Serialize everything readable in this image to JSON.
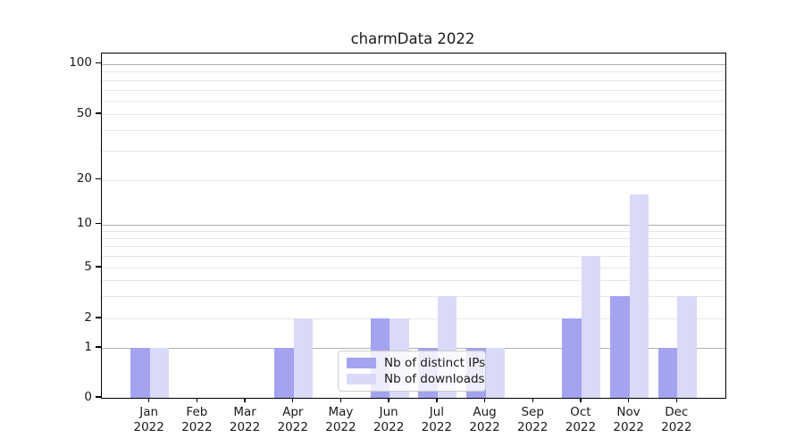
{
  "title": "charmData 2022",
  "chart_data": {
    "type": "bar",
    "title": "charmData 2022",
    "categories": [
      {
        "month": "Jan",
        "year": "2022"
      },
      {
        "month": "Feb",
        "year": "2022"
      },
      {
        "month": "Mar",
        "year": "2022"
      },
      {
        "month": "Apr",
        "year": "2022"
      },
      {
        "month": "May",
        "year": "2022"
      },
      {
        "month": "Jun",
        "year": "2022"
      },
      {
        "month": "Jul",
        "year": "2022"
      },
      {
        "month": "Aug",
        "year": "2022"
      },
      {
        "month": "Sep",
        "year": "2022"
      },
      {
        "month": "Oct",
        "year": "2022"
      },
      {
        "month": "Nov",
        "year": "2022"
      },
      {
        "month": "Dec",
        "year": "2022"
      }
    ],
    "series": [
      {
        "name": "Nb of distinct IPs",
        "color": "#a3a3f0",
        "values": [
          1,
          0,
          0,
          1,
          0,
          2,
          1,
          1,
          0,
          2,
          3,
          1
        ]
      },
      {
        "name": "Nb of downloads",
        "color": "#d9d9f8",
        "values": [
          1,
          0,
          0,
          2,
          0,
          2,
          3,
          1,
          0,
          6,
          16,
          3
        ]
      }
    ],
    "xlabel": "",
    "ylabel": "",
    "y_axis": {
      "scale": "symlog",
      "tick_labels": [
        "0",
        "1",
        "2",
        "5",
        "10",
        "20",
        "50",
        "100"
      ],
      "tick_values": [
        0,
        1,
        2,
        5,
        10,
        20,
        50,
        100
      ],
      "major_gridline_values": [
        1,
        10,
        100
      ],
      "minor_gridline_values": [
        2,
        3,
        4,
        5,
        6,
        7,
        8,
        9,
        20,
        30,
        40,
        50,
        60,
        70,
        80,
        90
      ],
      "ylim": [
        0,
        115
      ]
    },
    "legend": {
      "position": "lower center",
      "entries": [
        "Nb of distinct IPs",
        "Nb of downloads"
      ]
    },
    "grid": true
  },
  "colors": {
    "major_grid": "#b0b0b0",
    "minor_grid": "#e6e6e6",
    "spine": "#000000",
    "text": "#1a1a1a",
    "background": "#ffffff"
  }
}
